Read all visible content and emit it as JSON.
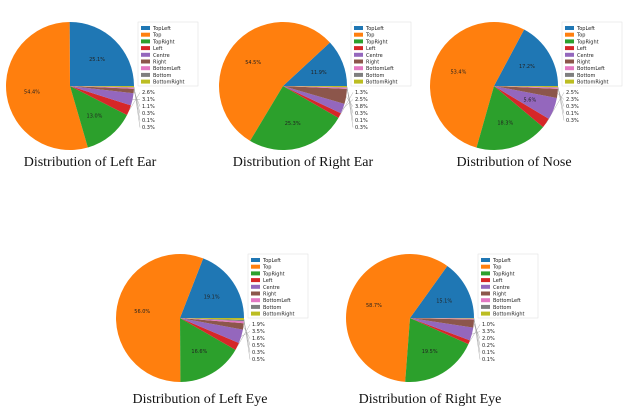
{
  "chart_data": [
    {
      "type": "pie",
      "title": "Distribution of Left Ear",
      "categories": [
        "TopLeft",
        "Top",
        "TopRight",
        "Left",
        "Centre",
        "Right",
        "BottomLeft",
        "Bottom",
        "BottomRight"
      ],
      "values": [
        25.1,
        54.4,
        13.0,
        2.6,
        3.1,
        1.1,
        0.3,
        0.1,
        0.3
      ],
      "legend": "top-right"
    },
    {
      "type": "pie",
      "title": "Distribution of Right Ear",
      "categories": [
        "TopLeft",
        "Top",
        "TopRight",
        "Left",
        "Centre",
        "Right",
        "BottomLeft",
        "Bottom",
        "BottomRight"
      ],
      "values": [
        11.9,
        54.5,
        25.3,
        1.3,
        2.5,
        3.8,
        0.3,
        0.1,
        0.3
      ],
      "legend": "top-right"
    },
    {
      "type": "pie",
      "title": "Distribution of Nose",
      "categories": [
        "TopLeft",
        "Top",
        "TopRight",
        "Left",
        "Centre",
        "Right",
        "BottomLeft",
        "Bottom",
        "BottomRight"
      ],
      "values": [
        17.2,
        53.4,
        18.3,
        2.5,
        5.6,
        2.3,
        0.3,
        0.1,
        0.3
      ],
      "legend": "top-right"
    },
    {
      "type": "pie",
      "title": "Distribution of Left Eye",
      "categories": [
        "TopLeft",
        "Top",
        "TopRight",
        "Left",
        "Centre",
        "Right",
        "BottomLeft",
        "Bottom",
        "BottomRight"
      ],
      "values": [
        19.1,
        56.0,
        16.6,
        1.9,
        3.5,
        1.6,
        0.5,
        0.3,
        0.5
      ],
      "legend": "top-right"
    },
    {
      "type": "pie",
      "title": "Distribution of Right Eye",
      "categories": [
        "TopLeft",
        "Top",
        "TopRight",
        "Left",
        "Centre",
        "Right",
        "BottomLeft",
        "Bottom",
        "BottomRight"
      ],
      "values": [
        15.1,
        58.7,
        19.5,
        1.0,
        3.3,
        2.0,
        0.2,
        0.1,
        0.1
      ],
      "legend": "top-right"
    }
  ],
  "colors": [
    "#1f77b4",
    "#ff7f0e",
    "#2ca02c",
    "#d62728",
    "#9467bd",
    "#8c564b",
    "#e377c2",
    "#7f7f7f",
    "#bcbd22"
  ]
}
